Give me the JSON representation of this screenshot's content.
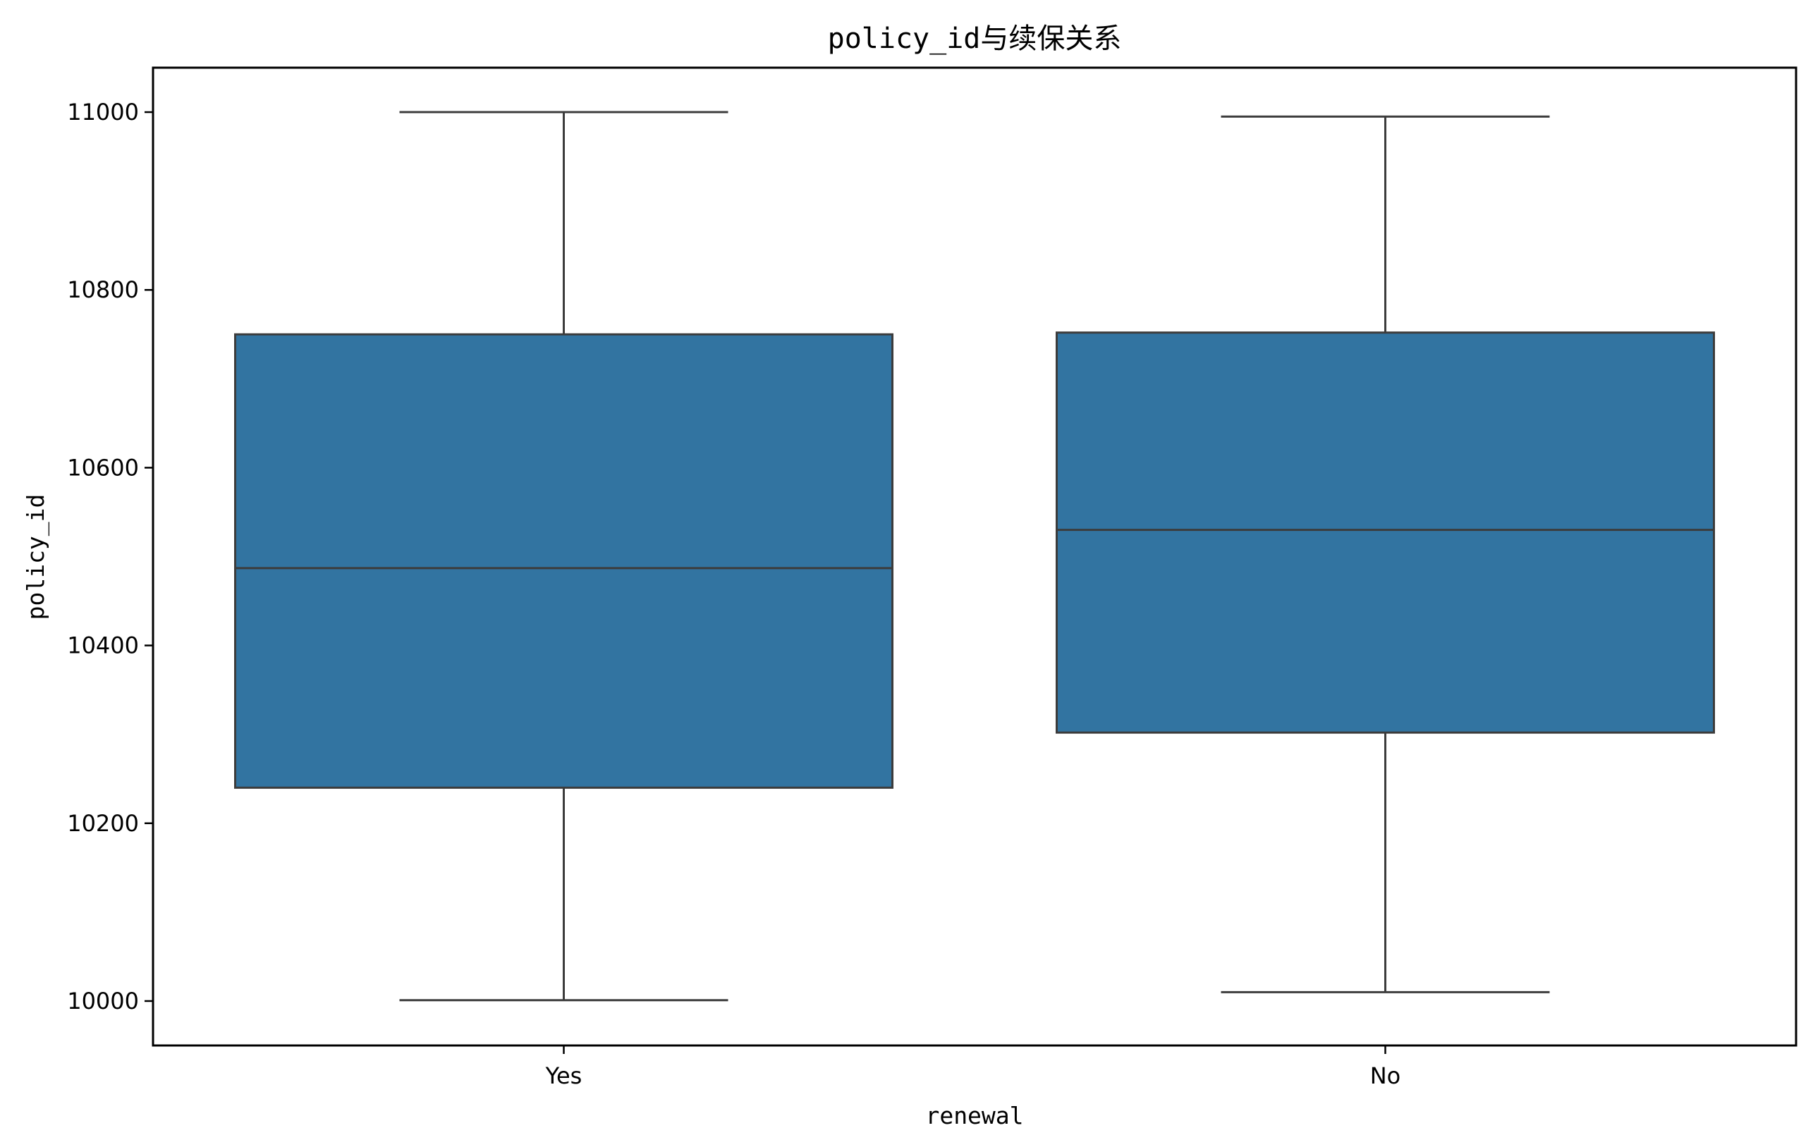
{
  "chart_data": {
    "type": "box",
    "title": "policy_id与续保关系",
    "xlabel": "renewal",
    "ylabel": "policy_id",
    "categories": [
      "Yes",
      "No"
    ],
    "boxes": [
      {
        "category": "Yes",
        "whisker_low": 10001,
        "q1": 10240,
        "median": 10487,
        "q3": 10750,
        "whisker_high": 11000
      },
      {
        "category": "No",
        "whisker_low": 10010,
        "q1": 10302,
        "median": 10530,
        "q3": 10752,
        "whisker_high": 10995
      }
    ],
    "ylim": [
      9950,
      11050
    ],
    "yticks": [
      10000,
      10200,
      10400,
      10600,
      10800,
      11000
    ],
    "grid": false,
    "colors": {
      "box_fill": "#3274a1",
      "line": "#3c3c3c",
      "axes": "#000000"
    }
  }
}
